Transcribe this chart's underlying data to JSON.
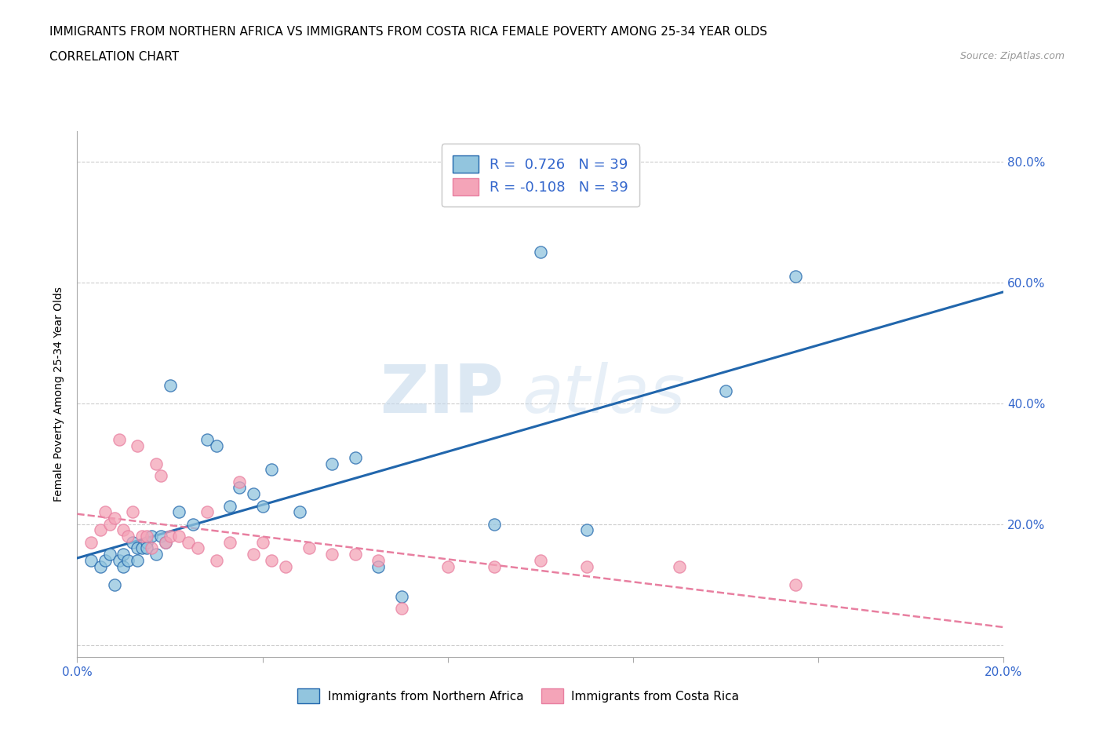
{
  "title_line1": "IMMIGRANTS FROM NORTHERN AFRICA VS IMMIGRANTS FROM COSTA RICA FEMALE POVERTY AMONG 25-34 YEAR OLDS",
  "title_line2": "CORRELATION CHART",
  "source_text": "Source: ZipAtlas.com",
  "ylabel": "Female Poverty Among 25-34 Year Olds",
  "xlim": [
    0.0,
    0.2
  ],
  "ylim": [
    -0.02,
    0.85
  ],
  "r_blue": 0.726,
  "r_pink": -0.108,
  "n_blue": 39,
  "n_pink": 39,
  "blue_color": "#92c5de",
  "pink_color": "#f4a4b8",
  "line_blue": "#2166ac",
  "line_pink": "#e87fa0",
  "watermark_top": "ZIP",
  "watermark_bot": "atlas",
  "legend_label_blue": "Immigrants from Northern Africa",
  "legend_label_pink": "Immigrants from Costa Rica",
  "blue_scatter_x": [
    0.003,
    0.005,
    0.006,
    0.007,
    0.008,
    0.009,
    0.01,
    0.01,
    0.011,
    0.012,
    0.013,
    0.013,
    0.014,
    0.015,
    0.015,
    0.016,
    0.017,
    0.018,
    0.019,
    0.02,
    0.022,
    0.025,
    0.028,
    0.03,
    0.033,
    0.035,
    0.038,
    0.04,
    0.042,
    0.048,
    0.055,
    0.06,
    0.065,
    0.07,
    0.09,
    0.1,
    0.11,
    0.14,
    0.155
  ],
  "blue_scatter_y": [
    0.14,
    0.13,
    0.14,
    0.15,
    0.1,
    0.14,
    0.15,
    0.13,
    0.14,
    0.17,
    0.16,
    0.14,
    0.16,
    0.17,
    0.16,
    0.18,
    0.15,
    0.18,
    0.17,
    0.43,
    0.22,
    0.2,
    0.34,
    0.33,
    0.23,
    0.26,
    0.25,
    0.23,
    0.29,
    0.22,
    0.3,
    0.31,
    0.13,
    0.08,
    0.2,
    0.65,
    0.19,
    0.42,
    0.61
  ],
  "pink_scatter_x": [
    0.003,
    0.005,
    0.006,
    0.007,
    0.008,
    0.009,
    0.01,
    0.011,
    0.012,
    0.013,
    0.014,
    0.015,
    0.016,
    0.017,
    0.018,
    0.019,
    0.02,
    0.022,
    0.024,
    0.026,
    0.028,
    0.03,
    0.033,
    0.035,
    0.038,
    0.04,
    0.042,
    0.045,
    0.05,
    0.055,
    0.06,
    0.065,
    0.07,
    0.08,
    0.09,
    0.1,
    0.11,
    0.13,
    0.155
  ],
  "pink_scatter_y": [
    0.17,
    0.19,
    0.22,
    0.2,
    0.21,
    0.34,
    0.19,
    0.18,
    0.22,
    0.33,
    0.18,
    0.18,
    0.16,
    0.3,
    0.28,
    0.17,
    0.18,
    0.18,
    0.17,
    0.16,
    0.22,
    0.14,
    0.17,
    0.27,
    0.15,
    0.17,
    0.14,
    0.13,
    0.16,
    0.15,
    0.15,
    0.14,
    0.06,
    0.13,
    0.13,
    0.14,
    0.13,
    0.13,
    0.1
  ],
  "title_fontsize": 11,
  "axis_label_fontsize": 10,
  "tick_fontsize": 11
}
